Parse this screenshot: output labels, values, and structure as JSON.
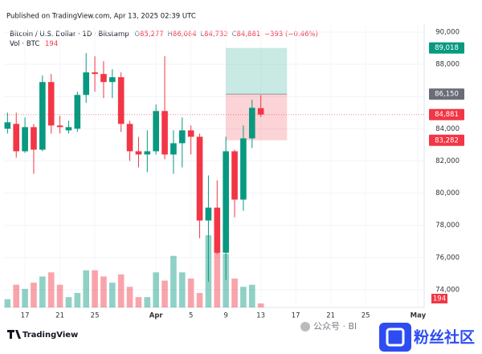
{
  "chart_data": {
    "type": "candlestick",
    "published": "Published on TradingView.com, Apr 13, 2025 02:39 UTC",
    "symbol": "Bitcoin / U.S. Dollar · 1D · Bitstamp",
    "ohlc_legend": [
      {
        "key": "O",
        "value": "85,277"
      },
      {
        "key": "H",
        "value": "86,084"
      },
      {
        "key": "L",
        "value": "84,732"
      },
      {
        "key": "C",
        "value": "84,881"
      }
    ],
    "change": "−393 (−0.46%)",
    "volume_label": "Vol · BTC",
    "x": [
      15,
      16,
      17,
      18,
      19,
      20,
      21,
      22,
      23,
      24,
      25,
      26,
      27,
      28,
      29,
      30,
      31,
      32,
      33,
      34,
      35,
      36,
      37,
      38,
      39,
      40,
      41,
      42,
      43,
      44
    ],
    "open": [
      84000,
      84300,
      82600,
      84100,
      82700,
      86900,
      84200,
      83900,
      84000,
      86100,
      87500,
      87400,
      86900,
      87200,
      84300,
      82600,
      82400,
      82600,
      85100,
      82400,
      83100,
      83900,
      83500,
      78300,
      79100,
      76300,
      82600,
      79600,
      83400,
      85277
    ],
    "high": [
      85000,
      85000,
      84700,
      84300,
      87300,
      87400,
      84800,
      84500,
      86300,
      88700,
      88500,
      88200,
      87700,
      87500,
      84500,
      83500,
      83900,
      85500,
      88500,
      83900,
      84700,
      84200,
      83700,
      81100,
      80800,
      83500,
      82700,
      84200,
      85800,
      86084
    ],
    "low": [
      83700,
      82200,
      82500,
      81200,
      82600,
      83700,
      83700,
      83700,
      83800,
      85600,
      86300,
      85900,
      85900,
      83800,
      82000,
      81600,
      81300,
      82400,
      82100,
      81200,
      81600,
      82400,
      77200,
      74500,
      76200,
      74600,
      78500,
      78900,
      82800,
      84732
    ],
    "close": [
      84400,
      82600,
      84100,
      82700,
      86900,
      84200,
      84100,
      84100,
      86100,
      87500,
      87400,
      86900,
      87200,
      84300,
      82600,
      82400,
      82600,
      85100,
      82400,
      83100,
      83900,
      83500,
      78300,
      79100,
      76300,
      82600,
      79600,
      83400,
      85300,
      84881
    ],
    "volume": [
      400,
      1100,
      900,
      1200,
      1500,
      1700,
      1100,
      500,
      700,
      1800,
      1800,
      1500,
      1200,
      1600,
      1000,
      500,
      500,
      1700,
      1300,
      2500,
      1700,
      1400,
      700,
      3500,
      3200,
      2600,
      1400,
      1000,
      1100,
      194
    ],
    "last_price_label": "84,881",
    "position": {
      "x": [
        40,
        47
      ],
      "target": 89018,
      "entry": 86150,
      "stop": 83282,
      "value_labels": {
        "target": "89,018",
        "entry": "86,150",
        "stop": "83,282"
      }
    },
    "up_color": "#089981",
    "down_color": "#f23645",
    "xlim": [
      14.6,
      62.7
    ],
    "xticks": [
      17,
      21,
      25,
      {
        "value": 32,
        "label": "Apr"
      },
      {
        "value": 36,
        "label": "5"
      },
      {
        "value": 40,
        "label": "9"
      },
      {
        "value": 44,
        "label": "13"
      },
      {
        "value": 48,
        "label": "17"
      },
      {
        "value": 52,
        "label": "21"
      },
      {
        "value": 56,
        "label": "25"
      },
      {
        "value": 62,
        "label": "May"
      }
    ],
    "ylim": [
      72900,
      90400
    ],
    "yticks": [
      {
        "value": 74000,
        "label": "74,000"
      },
      {
        "value": 76000,
        "label": "76,000"
      },
      {
        "value": 78000,
        "label": "78,000"
      },
      {
        "value": 80000,
        "label": "80,000"
      },
      {
        "value": 82000,
        "label": "82,000"
      },
      {
        "value": 84000,
        "label": "84,000"
      },
      {
        "value": 86000,
        "label": "86,000"
      },
      {
        "value": 88000,
        "label": "88,000"
      },
      {
        "value": 90000,
        "label": "90,000"
      }
    ],
    "grid": true,
    "footer": "TradingView",
    "watermark": "公众号 · Bl",
    "badge": "粉丝社区"
  }
}
